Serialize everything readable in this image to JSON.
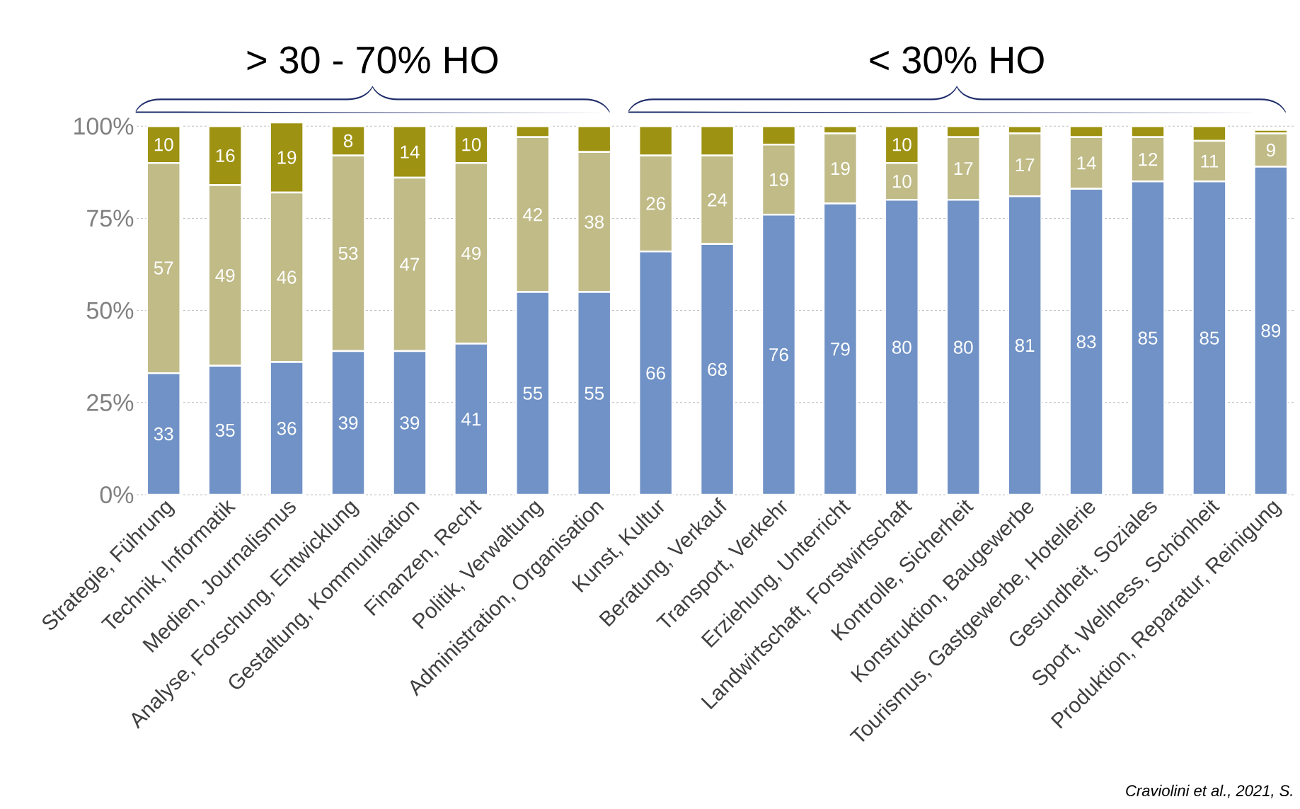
{
  "chart_data": {
    "type": "bar",
    "stacked": true,
    "grid": "y",
    "annotations": [
      "> 30 - 70% HO",
      "< 30% HO",
      "Craviolini et al., 2021, S."
    ],
    "categories": [
      "Strategie, Führung",
      "Technik, Informatik",
      "Medien, Journalismus",
      "Analyse, Forschung, Entwicklung",
      "Gestaltung, Kommunikation",
      "Finanzen, Recht",
      "Politik, Verwaltung",
      "Administration, Organisation",
      "Kunst, Kultur",
      "Beratung, Verkauf",
      "Transport, Verkehr",
      "Erziehung, Unterricht",
      "Landwirtschaft, Forstwirtschaft",
      "Kontrolle, Sicherheit",
      "Konstruktion, Baugewerbe",
      "Tourismus, Gastgewerbe, Hotellerie",
      "Gesundheit, Soziales",
      "Sport, Wellness, Schönheit",
      "Produktion, Reparatur, Reinigung"
    ],
    "series": [
      {
        "color": "#7092c6",
        "values": [
          33,
          35,
          36,
          39,
          39,
          41,
          55,
          55,
          66,
          68,
          76,
          79,
          80,
          80,
          81,
          83,
          85,
          85,
          89
        ],
        "value_labels": [
          "33",
          "35",
          "36",
          "39",
          "39",
          "41",
          "55",
          "55",
          "66",
          "68",
          "76",
          "79",
          "80",
          "80",
          "81",
          "83",
          "85",
          "85",
          "89"
        ]
      },
      {
        "color": "#c0bb87",
        "values": [
          57,
          49,
          46,
          53,
          47,
          49,
          42,
          38,
          26,
          24,
          19,
          19,
          10,
          17,
          17,
          14,
          12,
          11,
          9
        ],
        "value_labels": [
          "57",
          "49",
          "46",
          "53",
          "47",
          "49",
          "42",
          "38",
          "26",
          "24",
          "19",
          "19",
          "10",
          "17",
          "17",
          "14",
          "12",
          "11",
          "9"
        ]
      },
      {
        "color": "#9e9212",
        "values": [
          10,
          16,
          19,
          8,
          14,
          10,
          3,
          7,
          8,
          8,
          5,
          2,
          10,
          3,
          2,
          3,
          3,
          4,
          1
        ],
        "value_labels": [
          "10",
          "16",
          "19",
          "8",
          "14",
          "10",
          null,
          null,
          null,
          null,
          null,
          null,
          "10",
          null,
          null,
          null,
          null,
          null,
          null
        ]
      }
    ],
    "ylim": [
      0,
      101
    ],
    "yticks": [
      {
        "value": 0,
        "label": "0%"
      },
      {
        "value": 25,
        "label": "25%"
      },
      {
        "value": 50,
        "label": "50%"
      },
      {
        "value": 75,
        "label": "75%"
      },
      {
        "value": 100,
        "label": "100%"
      }
    ]
  }
}
